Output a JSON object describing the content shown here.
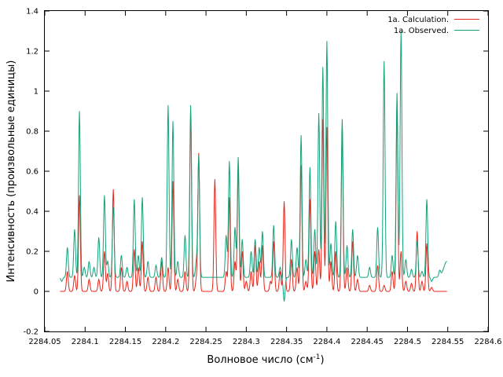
{
  "chart_data": {
    "type": "line",
    "xlabel": "Волновое число (см",
    "xlabel_sup": "-1",
    "xlabel_end": ")",
    "ylabel": "Интенсивность (произвольные единицы)",
    "xlim": [
      2284.05,
      2284.6
    ],
    "ylim": [
      -0.2,
      1.4
    ],
    "xticks": [
      2284.05,
      2284.1,
      2284.15,
      2284.2,
      2284.25,
      2284.3,
      2284.35,
      2284.4,
      2284.45,
      2284.5,
      2284.55,
      2284.6
    ],
    "xtick_labels": [
      "2284.05",
      "2284.1",
      "2284.15",
      "2284.2",
      "2284.25",
      "2284.3",
      "2284.35",
      "2284.4",
      "2284.45",
      "2284.5",
      "2284.55",
      "2284.6"
    ],
    "yticks": [
      -0.2,
      0,
      0.2,
      0.4,
      0.6,
      0.8,
      1,
      1.2,
      1.4
    ],
    "ytick_labels": [
      "-0.2",
      "0",
      "0.2",
      "0.4",
      "0.6",
      "0.8",
      "1",
      "1.2",
      "1.4"
    ],
    "grid": false,
    "legend_position": "top-right",
    "series": [
      {
        "name": "1a. Calculation.",
        "color": "#e8241a",
        "baseline": 0.0,
        "x_start": 2284.069,
        "x_end": 2284.549,
        "peaks": [
          [
            2284.078,
            0.1
          ],
          [
            2284.087,
            0.08
          ],
          [
            2284.093,
            0.48
          ],
          [
            2284.105,
            0.06
          ],
          [
            2284.117,
            0.06
          ],
          [
            2284.124,
            0.2
          ],
          [
            2284.128,
            0.09
          ],
          [
            2284.135,
            0.51
          ],
          [
            2284.145,
            0.12
          ],
          [
            2284.152,
            0.05
          ],
          [
            2284.161,
            0.21
          ],
          [
            2284.166,
            0.12
          ],
          [
            2284.171,
            0.25
          ],
          [
            2284.178,
            0.07
          ],
          [
            2284.188,
            0.07
          ],
          [
            2284.195,
            0.15
          ],
          [
            2284.203,
            0.12
          ],
          [
            2284.209,
            0.55
          ],
          [
            2284.215,
            0.06
          ],
          [
            2284.224,
            0.1
          ],
          [
            2284.231,
            0.88
          ],
          [
            2284.238,
            0.06
          ],
          [
            2284.241,
            0.69
          ],
          [
            2284.261,
            0.56
          ],
          [
            2284.275,
            0.1
          ],
          [
            2284.279,
            0.47
          ],
          [
            2284.286,
            0.15
          ],
          [
            2284.29,
            0.61
          ],
          [
            2284.295,
            0.2
          ],
          [
            2284.3,
            0.05
          ],
          [
            2284.306,
            0.1
          ],
          [
            2284.311,
            0.23
          ],
          [
            2284.316,
            0.15
          ],
          [
            2284.32,
            0.23
          ],
          [
            2284.33,
            0.05
          ],
          [
            2284.334,
            0.25
          ],
          [
            2284.342,
            0.1
          ],
          [
            2284.347,
            0.45
          ],
          [
            2284.356,
            0.16
          ],
          [
            2284.363,
            0.12
          ],
          [
            2284.368,
            0.63
          ],
          [
            2284.374,
            0.05
          ],
          [
            2284.379,
            0.46
          ],
          [
            2284.385,
            0.2
          ],
          [
            2284.39,
            0.21
          ],
          [
            2284.395,
            0.86
          ],
          [
            2284.4,
            0.82
          ],
          [
            2284.405,
            0.15
          ],
          [
            2284.411,
            0.2
          ],
          [
            2284.419,
            0.78
          ],
          [
            2284.425,
            0.12
          ],
          [
            2284.432,
            0.25
          ],
          [
            2284.438,
            0.06
          ],
          [
            2284.453,
            0.03
          ],
          [
            2284.463,
            0.13
          ],
          [
            2284.471,
            0.03
          ],
          [
            2284.481,
            0.1
          ],
          [
            2284.487,
            0.9
          ],
          [
            2284.492,
            0.2
          ],
          [
            2284.498,
            0.05
          ],
          [
            2284.505,
            0.04
          ],
          [
            2284.512,
            0.3
          ],
          [
            2284.518,
            0.05
          ],
          [
            2284.524,
            0.24
          ],
          [
            2284.53,
            0.02
          ]
        ]
      },
      {
        "name": "1a. Observed.",
        "color": "#12a27a",
        "baseline": 0.07,
        "x_start": 2284.069,
        "x_end": 2284.549,
        "end_value": 0.15,
        "peaks": [
          [
            2284.071,
            0.05
          ],
          [
            2284.078,
            0.22
          ],
          [
            2284.087,
            0.31
          ],
          [
            2284.093,
            0.9
          ],
          [
            2284.099,
            0.12
          ],
          [
            2284.105,
            0.15
          ],
          [
            2284.111,
            0.12
          ],
          [
            2284.117,
            0.27
          ],
          [
            2284.124,
            0.48
          ],
          [
            2284.128,
            0.15
          ],
          [
            2284.135,
            0.42
          ],
          [
            2284.145,
            0.18
          ],
          [
            2284.152,
            0.12
          ],
          [
            2284.161,
            0.46
          ],
          [
            2284.166,
            0.18
          ],
          [
            2284.171,
            0.47
          ],
          [
            2284.178,
            0.15
          ],
          [
            2284.188,
            0.13
          ],
          [
            2284.195,
            0.17
          ],
          [
            2284.203,
            0.93
          ],
          [
            2284.209,
            0.85
          ],
          [
            2284.215,
            0.15
          ],
          [
            2284.224,
            0.28
          ],
          [
            2284.231,
            0.93
          ],
          [
            2284.238,
            0.15
          ],
          [
            2284.241,
            0.68
          ],
          [
            2284.275,
            0.28
          ],
          [
            2284.279,
            0.65
          ],
          [
            2284.286,
            0.32
          ],
          [
            2284.29,
            0.67
          ],
          [
            2284.295,
            0.26
          ],
          [
            2284.306,
            0.2
          ],
          [
            2284.311,
            0.26
          ],
          [
            2284.316,
            0.22
          ],
          [
            2284.32,
            0.3
          ],
          [
            2284.334,
            0.33
          ],
          [
            2284.342,
            0.12
          ],
          [
            2284.347,
            -0.05
          ],
          [
            2284.356,
            0.26
          ],
          [
            2284.363,
            0.22
          ],
          [
            2284.368,
            0.78
          ],
          [
            2284.374,
            0.16
          ],
          [
            2284.379,
            0.62
          ],
          [
            2284.385,
            0.31
          ],
          [
            2284.39,
            0.89
          ],
          [
            2284.395,
            1.12
          ],
          [
            2284.4,
            1.25
          ],
          [
            2284.405,
            0.24
          ],
          [
            2284.411,
            0.35
          ],
          [
            2284.419,
            0.86
          ],
          [
            2284.425,
            0.23
          ],
          [
            2284.432,
            0.31
          ],
          [
            2284.438,
            0.18
          ],
          [
            2284.453,
            0.12
          ],
          [
            2284.463,
            0.32
          ],
          [
            2284.471,
            1.15
          ],
          [
            2284.481,
            0.18
          ],
          [
            2284.487,
            0.99
          ],
          [
            2284.492,
            1.3
          ],
          [
            2284.498,
            0.16
          ],
          [
            2284.505,
            0.11
          ],
          [
            2284.512,
            0.25
          ],
          [
            2284.518,
            0.1
          ],
          [
            2284.524,
            0.46
          ],
          [
            2284.53,
            0.05
          ],
          [
            2284.54,
            0.1
          ]
        ]
      }
    ]
  }
}
